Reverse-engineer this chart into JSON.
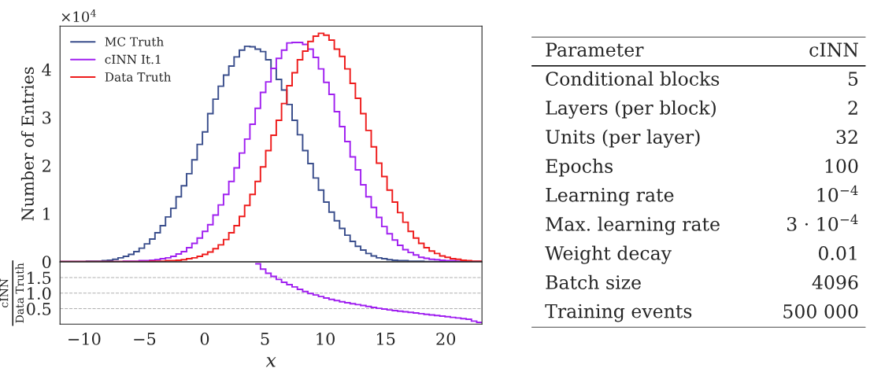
{
  "chart_data": [
    {
      "type": "histogram",
      "ylabel": "Number of Entries",
      "annotations": [
        "×10$^{4}$"
      ],
      "bins": [
        -12,
        -11.5625,
        -11.125,
        -10.6875,
        -10.25,
        -9.8125,
        -9.375,
        -8.9375,
        -8.5,
        -8.0625,
        -7.625,
        -7.1875,
        -6.75,
        -6.3125,
        -5.875,
        -5.4375,
        -5,
        -4.5625,
        -4.125,
        -3.6875,
        -3.25,
        -2.8125,
        -2.375,
        -1.9375,
        -1.5,
        -1.0625,
        -0.625,
        -0.1875,
        0.25,
        0.6875,
        1.125,
        1.5625,
        2,
        2.4375,
        2.875,
        3.3125,
        3.75,
        4.1875,
        4.625,
        5.0625,
        5.5,
        5.9375,
        6.375,
        6.8125,
        7.25,
        7.6875,
        8.125,
        8.5625,
        9,
        9.4375,
        9.875,
        10.3125,
        10.75,
        11.1875,
        11.625,
        12.0625,
        12.5,
        12.9375,
        13.375,
        13.8125,
        14.25,
        14.6875,
        15.125,
        15.5625,
        16,
        16.4375,
        16.875,
        17.3125,
        17.75,
        18.1875,
        18.625,
        19.0625,
        19.5,
        19.9375,
        20.375,
        20.8125,
        21.25,
        21.6875,
        22.125,
        22.5625,
        23
      ],
      "series": [
        {
          "name": "MC Truth",
          "color": "#3a4e8c",
          "values": [
            0,
            0,
            0,
            0,
            0,
            0.01,
            0.01,
            0.01,
            0.02,
            0.03,
            0.05,
            0.08,
            0.11,
            0.15,
            0.21,
            0.28,
            0.37,
            0.47,
            0.6,
            0.75,
            0.93,
            1.11,
            1.35,
            1.58,
            1.83,
            2.12,
            2.44,
            2.7,
            3.08,
            3.38,
            3.65,
            3.88,
            4.07,
            4.26,
            4.4,
            4.48,
            4.47,
            4.42,
            4.37,
            4.2,
            4.02,
            3.79,
            3.57,
            3.27,
            2.94,
            2.64,
            2.31,
            2.04,
            1.74,
            1.49,
            1.24,
            1.03,
            0.85,
            0.69,
            0.55,
            0.42,
            0.32,
            0.24,
            0.17,
            0.12,
            0.08,
            0.06,
            0.04,
            0.03,
            0.02,
            0.02,
            0.01,
            0.01,
            0.01,
            0,
            0,
            0,
            0,
            0,
            0,
            0,
            0,
            0,
            0,
            0
          ]
        },
        {
          "name": "cINN It.1",
          "color": "#a020f0",
          "values": [
            0,
            0,
            0,
            0,
            0,
            0,
            0,
            0,
            0,
            0,
            0,
            0,
            0.01,
            0.01,
            0.01,
            0.02,
            0.02,
            0.03,
            0.04,
            0.06,
            0.08,
            0.11,
            0.16,
            0.21,
            0.29,
            0.38,
            0.49,
            0.63,
            0.77,
            0.97,
            1.18,
            1.4,
            1.67,
            1.95,
            2.26,
            2.55,
            2.86,
            3.19,
            3.52,
            3.74,
            4.02,
            4.23,
            4.4,
            4.55,
            4.56,
            4.56,
            4.52,
            4.42,
            4.25,
            4.01,
            3.73,
            3.48,
            3.12,
            2.81,
            2.5,
            2.18,
            1.91,
            1.6,
            1.35,
            1.13,
            0.92,
            0.73,
            0.58,
            0.45,
            0.34,
            0.25,
            0.19,
            0.14,
            0.09,
            0.07,
            0.05,
            0.04,
            0.03,
            0.02,
            0.02,
            0.01,
            0.01,
            0.01,
            0,
            0
          ]
        },
        {
          "name": "Data Truth",
          "color": "#ee1c1c",
          "values": [
            0,
            0,
            0,
            0,
            0,
            0,
            0,
            0,
            0,
            0,
            0,
            0,
            0,
            0,
            0,
            0,
            0,
            0.01,
            0.01,
            0.01,
            0.02,
            0.02,
            0.03,
            0.04,
            0.06,
            0.08,
            0.11,
            0.15,
            0.2,
            0.27,
            0.35,
            0.46,
            0.6,
            0.75,
            0.94,
            1.17,
            1.4,
            1.67,
            1.97,
            2.31,
            2.63,
            2.94,
            3.29,
            3.66,
            3.93,
            4.2,
            4.38,
            4.58,
            4.69,
            4.75,
            4.71,
            4.61,
            4.42,
            4.27,
            4.01,
            3.71,
            3.4,
            3.08,
            2.73,
            2.39,
            2.05,
            1.77,
            1.49,
            1.24,
            1.02,
            0.82,
            0.63,
            0.49,
            0.38,
            0.29,
            0.22,
            0.17,
            0.12,
            0.09,
            0.06,
            0.05,
            0.03,
            0.02,
            0.01,
            0.01
          ]
        }
      ],
      "xlim": [
        -12,
        23
      ],
      "ylim": [
        0,
        4.9
      ],
      "yticks": [
        0,
        1,
        2,
        3,
        4
      ],
      "tick_labels": "y",
      "legend": "top left",
      "grid": false
    },
    {
      "type": "histogram",
      "ylabel": "cINN\nData Truth",
      "xlabel": "x",
      "bins": [
        4.1875,
        4.625,
        5.0625,
        5.5,
        5.9375,
        6.375,
        6.8125,
        7.25,
        7.6875,
        8.125,
        8.5625,
        9,
        9.4375,
        9.875,
        10.3125,
        10.75,
        11.1875,
        11.625,
        12.0625,
        12.5,
        12.9375,
        13.375,
        13.8125,
        14.25,
        14.6875,
        15.125,
        15.5625,
        16,
        16.4375,
        16.875,
        17.3125,
        17.75,
        18.1875,
        18.625,
        19.0625,
        19.5,
        19.9375,
        20.375,
        20.8125,
        21.25,
        21.6875,
        22.125,
        22.5625,
        23
      ],
      "series": [
        {
          "color": "#a020f0",
          "values": [
            1.94,
            1.77,
            1.64,
            1.54,
            1.44,
            1.35,
            1.27,
            1.2,
            1.12,
            1.05,
            0.99,
            0.94,
            0.89,
            0.84,
            0.8,
            0.76,
            0.72,
            0.69,
            0.66,
            0.63,
            0.6,
            0.57,
            0.54,
            0.51,
            0.49,
            0.46,
            0.44,
            0.42,
            0.4,
            0.38,
            0.36,
            0.34,
            0.32,
            0.3,
            0.28,
            0.26,
            0.24,
            0.22,
            0.2,
            0.18,
            0.16,
            0.1,
            0.06
          ]
        }
      ],
      "xlim": [
        -12,
        23
      ],
      "ylim": [
        0,
        2
      ],
      "xticks": [
        {
          "value": -10,
          "label": "−10"
        },
        {
          "value": -5,
          "label": "−5"
        },
        0,
        5,
        10,
        15,
        20
      ],
      "yticks": [
        0.5,
        {
          "value": 1,
          "label": "1.0"
        },
        1.5
      ],
      "grid": "y",
      "line_style": "dashed"
    },
    {
      "type": "other",
      "categories": [
        "Parameter",
        "Conditional blocks",
        "Layers (per block)",
        "Units (per layer)",
        "Epochs",
        "Learning rate",
        "Max. learning rate",
        "Weight decay",
        "Batch size",
        "Training events"
      ],
      "value_labels": [
        "cINN",
        "5",
        "2",
        "32",
        "100",
        "10$^{−4}$",
        "3 · 10$^{−4}$",
        "0.01",
        "4096",
        "500 000"
      ]
    }
  ]
}
